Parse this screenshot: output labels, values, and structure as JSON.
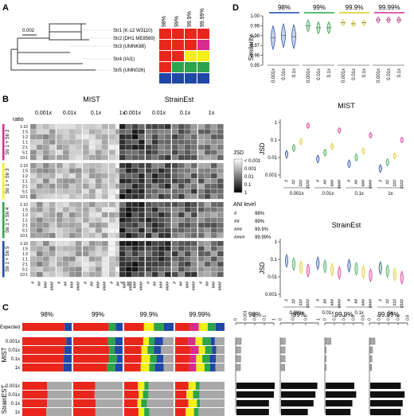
{
  "panel_a": {
    "label": "A",
    "scale_bar": "0.002",
    "strains": [
      "Str1 (K-12 W3110)",
      "Str2 (DH1 ME8569)",
      "Str3 (UMNK88)",
      "Str4 (IAI1)",
      "Str5 (UMN026)"
    ],
    "ani_columns": [
      "98%",
      "99%",
      "99.9%",
      "99.99%"
    ],
    "colors": {
      "red": "#e8261c",
      "magenta": "#d62c8e",
      "yellow": "#f6ee1a",
      "green": "#2ea44a",
      "blue": "#1f47a6"
    },
    "grid": [
      [
        "red",
        "red",
        "red",
        "red"
      ],
      [
        "red",
        "red",
        "red",
        "magenta"
      ],
      [
        "red",
        "red",
        "yellow",
        "yellow"
      ],
      [
        "red",
        "green",
        "green",
        "green"
      ],
      [
        "blue",
        "blue",
        "blue",
        "blue"
      ]
    ]
  },
  "panel_b": {
    "label": "B",
    "methods": [
      "MIST",
      "StrainEst"
    ],
    "depths": [
      "0.001x",
      "0.01x",
      "0.1x",
      "1x"
    ],
    "ratio_label": "ratio",
    "ratios": [
      "1:10",
      "1:5",
      "1:2",
      "1:1",
      "2:1",
      "5:1",
      "10:1"
    ],
    "pairs": [
      "Str 1 + Str 2",
      "Str 1 + Str 3",
      "Str 1 + Str 4",
      "Str 1 + Str 5"
    ],
    "pair_colors": [
      "#d62c8e",
      "#f6ee1a",
      "#2ea44a",
      "#1f47a6"
    ],
    "ani_ticks": [
      "#",
      "##",
      "###",
      "####"
    ],
    "jsd_legend": {
      "title": "JSD",
      "labels": [
        "< 0.001",
        "0.001",
        "0.01",
        "0.1",
        "1"
      ]
    },
    "ani_legend": {
      "title": "ANI level",
      "items": [
        {
          "sym": "#",
          "label": "98%"
        },
        {
          "sym": "##",
          "label": "99%"
        },
        {
          "sym": "###",
          "label": "99.9%"
        },
        {
          "sym": "####",
          "label": "99.99%"
        }
      ]
    }
  },
  "panel_c": {
    "label": "C",
    "ani_levels": [
      "98%",
      "99%",
      "99.9%",
      "99.99%"
    ],
    "expected_label": "Expected",
    "methods": [
      "MIST",
      "StrainEST"
    ],
    "depths": [
      "0.001x",
      "0.01x",
      "0.1x",
      "1x"
    ],
    "axes": [
      {
        "ticks": [
          "0",
          "0.001",
          "0.01",
          "0.1",
          "1"
        ]
      },
      {
        "ticks": [
          "0",
          "0.01",
          "0.1",
          "1"
        ]
      },
      {
        "ticks": [
          "0",
          "0.2",
          "0.4",
          "0.6",
          "0.8"
        ]
      },
      {
        "ticks": [
          "0",
          "0.2",
          "0.4",
          "0.6",
          "0.8"
        ]
      }
    ],
    "mist_bars": [
      [
        0.5,
        0.45,
        0.45,
        0.42
      ],
      [
        0.45,
        0.42,
        0.42,
        0.4
      ],
      [
        0.55,
        0.05,
        0.05,
        0.05
      ],
      [
        0.5,
        0.25,
        0.18,
        0.15
      ]
    ],
    "strainest_bars": [
      [
        1.0,
        0.98,
        0.85,
        0.85
      ],
      [
        0.95,
        0.9,
        0.85,
        0.7
      ],
      [
        0.75,
        0.8,
        0.7,
        0.65
      ],
      [
        0.8,
        0.9,
        0.85,
        0.8
      ]
    ]
  },
  "panel_d": {
    "label": "D",
    "ylabel": "Similarity",
    "yticks": [
      "1.00",
      "0.99",
      "0.98",
      "0.97",
      "0.96",
      "0.95"
    ],
    "groups": [
      {
        "title": "98%",
        "color": "#1f47a6",
        "medians": [
          0.978,
          0.98,
          0.979
        ]
      },
      {
        "title": "99%",
        "color": "#2ea44a",
        "medians": [
          0.99,
          0.988,
          0.988
        ]
      },
      {
        "title": "99.9%",
        "color": "#d9c81a",
        "medians": [
          0.993,
          0.992,
          0.993
        ]
      },
      {
        "title": "99.99%",
        "color": "#d62c8e",
        "medians": [
          0.996,
          0.996,
          0.996
        ]
      }
    ],
    "depths": [
      "0.001x",
      "0.01x",
      "0.1x"
    ],
    "jsd_plots": [
      {
        "title": "MIST",
        "ylabel": "JSD",
        "yticks": [
          "1",
          "0.1",
          "0.01",
          "0.001"
        ]
      },
      {
        "title": "StrainEst",
        "ylabel": "JSD",
        "yticks": [
          "1",
          "0.1",
          "0.01",
          "0.001"
        ]
      }
    ],
    "jsd_depths": [
      "0.001x",
      "0.01x",
      "0.1x",
      "1x"
    ]
  }
}
